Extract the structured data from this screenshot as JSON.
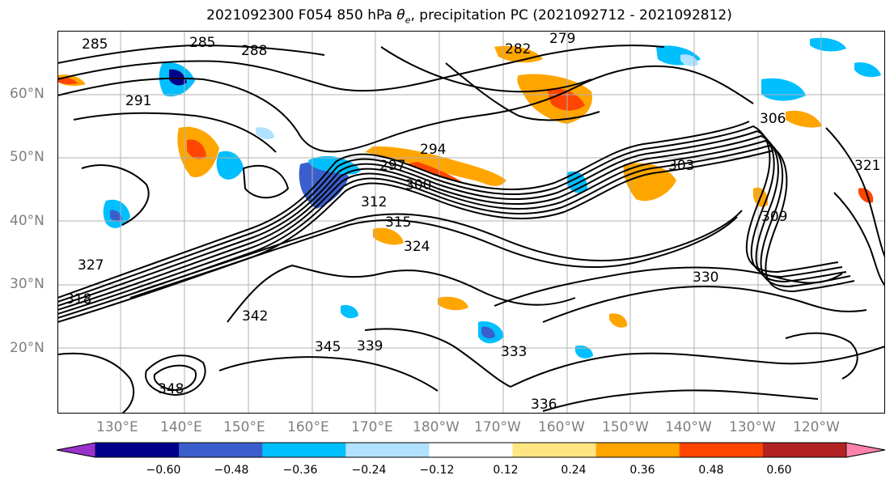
{
  "title": {
    "date": "2021092300",
    "lead": "F054",
    "level": "850 hPa",
    "var_symbol": "θ",
    "var_sub": "e",
    "rest": ", precipitation PC (2021092712 - 2021092812)"
  },
  "lat_labels": [
    "60°N",
    "50°N",
    "40°N",
    "30°N",
    "20°N"
  ],
  "lon_labels": [
    "130°E",
    "140°E",
    "150°E",
    "160°E",
    "170°E",
    "180°W",
    "170°W",
    "160°W",
    "150°W",
    "140°W",
    "130°W",
    "120°W"
  ],
  "contour_labels": [
    "285",
    "285",
    "288",
    "279",
    "282",
    "291",
    "294",
    "297",
    "300",
    "303",
    "306",
    "309",
    "312",
    "315",
    "318",
    "321",
    "324",
    "327",
    "330",
    "333",
    "336",
    "339",
    "342",
    "345",
    "348"
  ],
  "colorbar": {
    "ticks": [
      "−0.60",
      "−0.48",
      "−0.36",
      "−0.24",
      "−0.12",
      "0.12",
      "0.24",
      "0.36",
      "0.48",
      "0.60"
    ],
    "colors": [
      "#9932cc",
      "#00008b",
      "#3a5fcd",
      "#00bfff",
      "#b0e2ff",
      "#ffffff",
      "#ffe682",
      "#ffa500",
      "#ff4500",
      "#b22222",
      "#ff82ab"
    ]
  }
}
